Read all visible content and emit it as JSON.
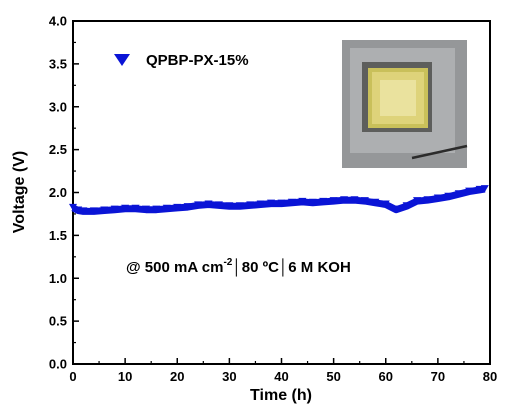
{
  "chart_data": {
    "type": "line",
    "xlabel": "Time (h)",
    "ylabel": "Voltage (V)",
    "xlim": [
      0,
      80
    ],
    "ylim": [
      0.0,
      4.0
    ],
    "x_ticks": [
      "0",
      "10",
      "20",
      "30",
      "40",
      "50",
      "60",
      "70",
      "80"
    ],
    "y_ticks": [
      "0.0",
      "0.5",
      "1.0",
      "1.5",
      "2.0",
      "2.5",
      "3.0",
      "3.5",
      "4.0"
    ],
    "grid": false,
    "legend_position": "top-left",
    "annotation": {
      "prefix": "@ 500 mA cm",
      "sup": "-2",
      "rest": "│80 ºC│6 M KOH"
    },
    "series": [
      {
        "name": "QPBP-PX-15%",
        "color": "#0a14d6",
        "marker": "triangle-down",
        "x": [
          0,
          1,
          2,
          4,
          6,
          8,
          10,
          12,
          14,
          16,
          18,
          20,
          22,
          24,
          26,
          28,
          30,
          32,
          34,
          36,
          38,
          40,
          42,
          44,
          46,
          48,
          50,
          52,
          54,
          56,
          58,
          60,
          62,
          64,
          66,
          68,
          70,
          72,
          74,
          76,
          78,
          79
        ],
        "values": [
          1.82,
          1.79,
          1.78,
          1.78,
          1.79,
          1.8,
          1.81,
          1.81,
          1.8,
          1.8,
          1.81,
          1.82,
          1.83,
          1.85,
          1.86,
          1.85,
          1.84,
          1.84,
          1.85,
          1.86,
          1.87,
          1.87,
          1.88,
          1.89,
          1.88,
          1.89,
          1.9,
          1.91,
          1.91,
          1.9,
          1.88,
          1.86,
          1.8,
          1.84,
          1.9,
          1.91,
          1.93,
          1.95,
          1.98,
          2.01,
          2.03,
          2.04
        ]
      }
    ]
  }
}
